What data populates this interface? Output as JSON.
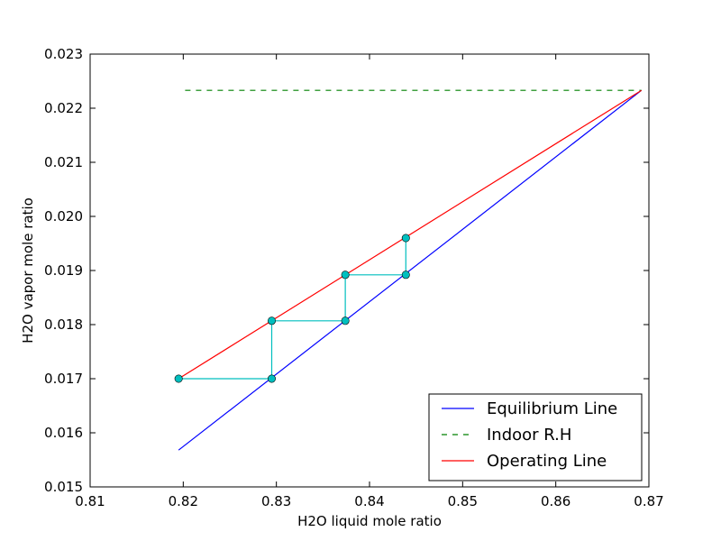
{
  "chart_data": {
    "type": "line",
    "xlabel": "H2O liquid mole ratio",
    "ylabel": "H2O vapor mole ratio",
    "xlim": [
      0.81,
      0.87
    ],
    "ylim": [
      0.015,
      0.023
    ],
    "xticks": [
      "0.81",
      "0.82",
      "0.83",
      "0.84",
      "0.85",
      "0.86",
      "0.87"
    ],
    "yticks": [
      "0.015",
      "0.016",
      "0.017",
      "0.018",
      "0.019",
      "0.020",
      "0.021",
      "0.022",
      "0.023"
    ],
    "grid": false,
    "legend_position": "lower-right",
    "series": [
      {
        "name": "Equilibrium Line",
        "color": "#0000ff",
        "style": "solid",
        "x": [
          0.8195,
          0.8692
        ],
        "y": [
          0.01568,
          0.02233
        ]
      },
      {
        "name": "Indoor R.H",
        "color": "#008000",
        "style": "dashed",
        "x": [
          0.8202,
          0.8692
        ],
        "y": [
          0.02233,
          0.02233
        ]
      },
      {
        "name": "Operating Line",
        "color": "#ff0000",
        "style": "solid",
        "x": [
          0.8195,
          0.8692
        ],
        "y": [
          0.017,
          0.02233
        ]
      },
      {
        "name": "",
        "color": "#00bfbf",
        "style": "solid",
        "marker": "circle",
        "x": [
          0.8195,
          0.8295,
          0.8295,
          0.8374,
          0.8374,
          0.8439,
          0.8439
        ],
        "y": [
          0.017,
          0.017,
          0.01807,
          0.01807,
          0.01892,
          0.01892,
          0.0196
        ]
      }
    ]
  }
}
